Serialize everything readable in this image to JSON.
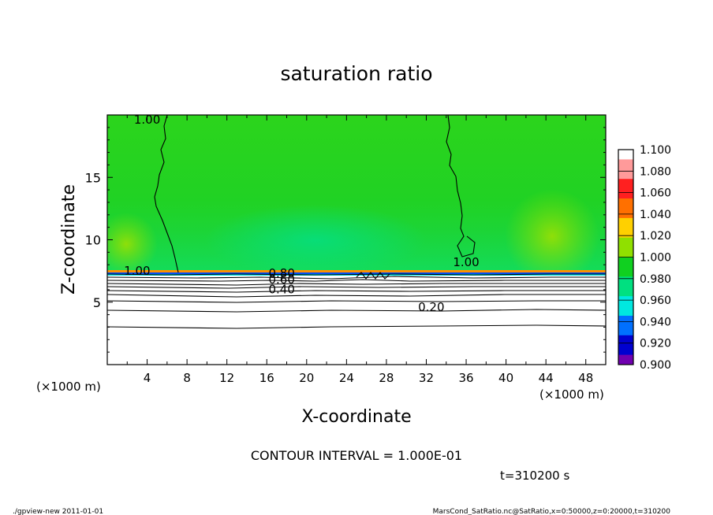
{
  "chart_data": {
    "type": "heatmap",
    "title": "saturation ratio",
    "xlabel": "X-coordinate",
    "ylabel": "Z-coordinate",
    "x_unit": "(×1000 m)",
    "y_unit": "(×1000 m)",
    "xlim": [
      0,
      50
    ],
    "ylim": [
      0,
      20
    ],
    "x_ticks": [
      4,
      8,
      12,
      16,
      20,
      24,
      28,
      32,
      36,
      40,
      44,
      48
    ],
    "y_ticks": [
      5,
      10,
      15
    ],
    "colorbar": {
      "levels": [
        "1.100",
        "1.080",
        "1.060",
        "1.040",
        "1.020",
        "1.000",
        "0.980",
        "0.960",
        "0.940",
        "0.920",
        "0.900"
      ],
      "colors": [
        "#ffffff",
        "#ff9a9a",
        "#ff2020",
        "#ff7000",
        "#ffd000",
        "#90e000",
        "#10d020",
        "#00e080",
        "#00e8e0",
        "#0070ff",
        "#0000d0",
        "#7000b0"
      ]
    },
    "contour_labels": [
      {
        "text": "1.00",
        "x": 3.0,
        "z": 7.2
      },
      {
        "text": "0.80",
        "x": 17.5,
        "z": 7.0
      },
      {
        "text": "0.60",
        "x": 17.5,
        "z": 6.5
      },
      {
        "text": "0.40",
        "x": 17.5,
        "z": 5.7
      },
      {
        "text": "0.20",
        "x": 32.5,
        "z": 4.3
      },
      {
        "text": "1.00",
        "x": 36.0,
        "z": 7.9
      },
      {
        "text": "1.00",
        "x": 4.0,
        "z": 19.3
      }
    ],
    "contour_interval_text": "CONTOUR INTERVAL = 1.000E-01",
    "time_text": "t=310200  s"
  },
  "footer": {
    "left": "./gpview-new   2011-01-01",
    "right": "MarsCond_SatRatio.nc@SatRatio,x=0:50000,z=0:20000,t=310200"
  }
}
